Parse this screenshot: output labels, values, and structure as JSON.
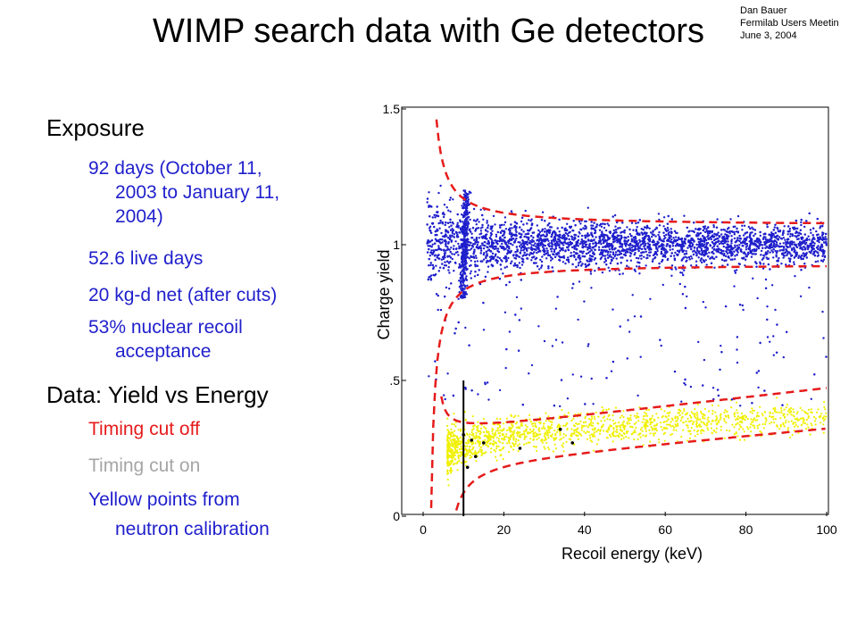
{
  "title": "WIMP search data with Ge detectors",
  "credit": [
    "Dan Bauer",
    "Fermilab Users Meetin",
    "June 3, 2004"
  ],
  "bullets": {
    "exposure_heading": "Exposure",
    "exposure_items": [
      {
        "line1": "92 days (October 11,",
        "line2": "2003 to  January 11,",
        "line3": "2004)"
      },
      {
        "line1": "52.6 live days"
      },
      {
        "line1": "20 kg-d net (after cuts)"
      },
      {
        "line1": "53% nuclear recoil",
        "line2": "acceptance"
      }
    ],
    "data_heading": "Data: Yield vs Energy",
    "timing_off": "Timing cut off",
    "timing_on": "Timing cut on",
    "yellow_line1": "Yellow points from",
    "yellow_line2": "neutron calibration"
  },
  "colors": {
    "bullet_blue": "#1f1fcc",
    "timing_off_red": "#e61b1b",
    "timing_on_gray": "#a6a6a6",
    "wimp_points": "#1f1fcc",
    "neutron_points": "#f0f000",
    "band_lines": "#e61b1b"
  },
  "chart_data": {
    "type": "scatter",
    "xlabel": "Recoil energy (keV)",
    "ylabel": "Charge yield",
    "xlim": [
      0,
      100
    ],
    "ylim": [
      0,
      1.5
    ],
    "xticks": [
      "0",
      "20",
      "40",
      "60",
      "80",
      "100"
    ],
    "yticks": [
      "0",
      ".5",
      "1",
      "1.5"
    ],
    "grid": false,
    "series": [
      {
        "color": "#1f1fcc",
        "description_points": "electron recoils clustered near yield 1.0 (approximate, dense band)"
      },
      {
        "color": "#f0f000",
        "description_points": "neutron calibration near yield 0.25-0.35 (approximate)"
      }
    ],
    "electron_band": {
      "upper_y_at_100": 1.08,
      "lower_y_at_100": 0.93
    },
    "nuclear_band": {
      "upper_y_at_100": 0.48,
      "lower_y_at_100": 0.33
    },
    "threshold_keV": 10,
    "candidate_points": [
      [
        10,
        0.3
      ],
      [
        12,
        0.28
      ],
      [
        13,
        0.22
      ],
      [
        15,
        0.27
      ],
      [
        24,
        0.25
      ],
      [
        34,
        0.32
      ],
      [
        37,
        0.27
      ],
      [
        11,
        0.18
      ]
    ]
  }
}
